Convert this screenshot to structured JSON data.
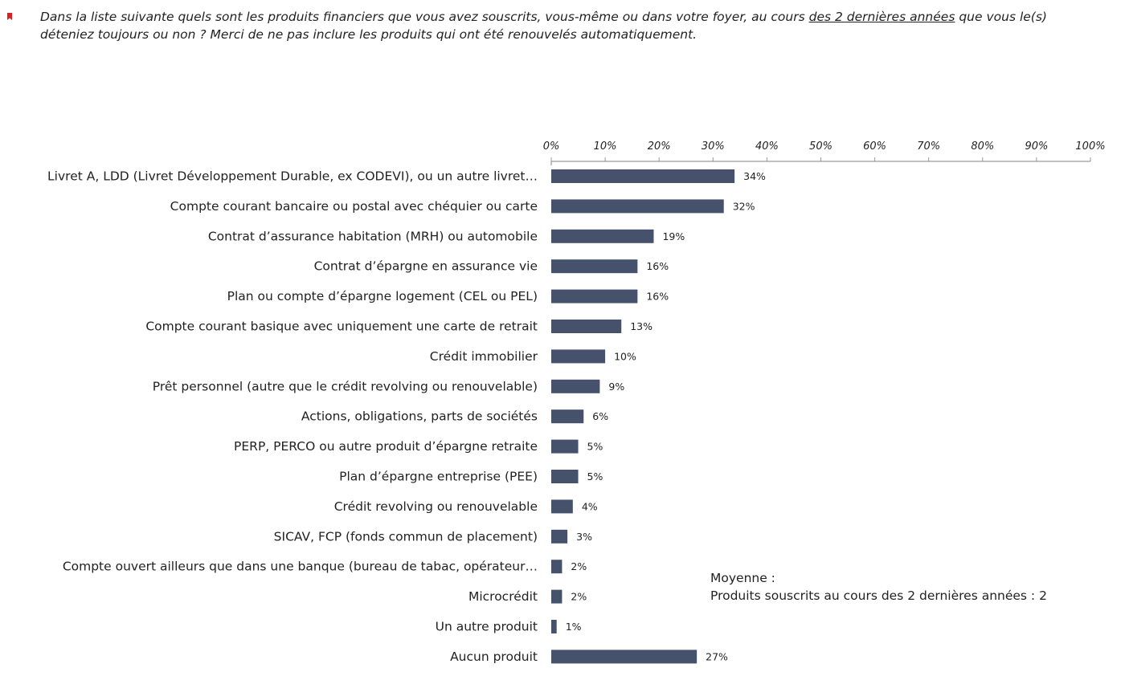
{
  "question": {
    "part1": "Dans la liste suivante quels sont les produits financiers que vous avez souscrits, vous-même ou dans votre foyer, au cours ",
    "underlined": "des 2 dernières années",
    "part2": " que vous le(s) déteniez toujours ou non ? Merci de ne pas inclure les produits qui ont été renouvelés automatiquement."
  },
  "note": {
    "line1": "Moyenne :",
    "line2": "Produits souscrits au cours des 2 dernières années : 2"
  },
  "colors": {
    "bar": "#46526b",
    "bullet": "#e02020",
    "axis": "#9a9a9a"
  },
  "chart_data": {
    "type": "bar",
    "orientation": "horizontal",
    "xlim": [
      0,
      100
    ],
    "x_ticks": [
      "0%",
      "10%",
      "20%",
      "30%",
      "40%",
      "50%",
      "60%",
      "70%",
      "80%",
      "90%",
      "100%"
    ],
    "grid": false,
    "categories": [
      "Livret A, LDD (Livret Développement Durable, ex CODEVI), ou un autre livret…",
      "Compte courant bancaire ou postal avec chéquier ou carte",
      "Contrat d’assurance habitation (MRH) ou automobile",
      "Contrat d’épargne en assurance vie",
      "Plan ou compte d’épargne logement (CEL ou PEL)",
      "Compte courant basique avec uniquement une carte de retrait",
      "Crédit immobilier",
      "Prêt personnel (autre que le crédit revolving ou renouvelable)",
      "Actions, obligations, parts de sociétés",
      "PERP, PERCO ou autre produit d’épargne retraite",
      "Plan d’épargne entreprise (PEE)",
      "Crédit revolving ou renouvelable",
      "SICAV, FCP (fonds commun de placement)",
      "Compte ouvert ailleurs que dans une banque (bureau de tabac, opérateur…",
      "Microcrédit",
      "Un autre produit",
      "Aucun produit"
    ],
    "values": [
      34,
      32,
      19,
      16,
      16,
      13,
      10,
      9,
      6,
      5,
      5,
      4,
      3,
      2,
      2,
      1,
      27
    ],
    "value_labels": [
      "34%",
      "32%",
      "19%",
      "16%",
      "16%",
      "13%",
      "10%",
      "9%",
      "6%",
      "5%",
      "5%",
      "4%",
      "3%",
      "2%",
      "2%",
      "1%",
      "27%"
    ]
  }
}
